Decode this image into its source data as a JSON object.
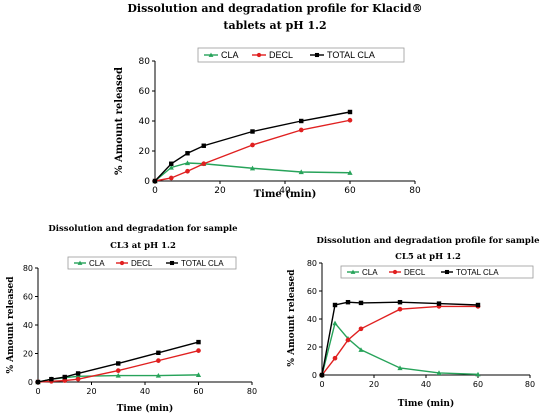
{
  "chart_data": [
    {
      "type": "line",
      "title_lines": [
        "Dissolution and degradation profile for Klacid®",
        "tablets at pH 1.2"
      ],
      "xlabel": "Time (min)",
      "ylabel": "% Amount released",
      "xlim": [
        0,
        80
      ],
      "ylim": [
        0,
        80
      ],
      "xticks": [
        "0",
        "20",
        "40",
        "60",
        "80"
      ],
      "yticks": [
        "0",
        "20",
        "40",
        "60",
        "80"
      ],
      "legend": "top",
      "series": [
        {
          "name": "CLA",
          "color": "#27a35a",
          "marker": "triangle",
          "x": [
            0,
            5,
            10,
            15,
            30,
            45,
            60
          ],
          "y": [
            0,
            9,
            12,
            11.5,
            8.5,
            6,
            5.5
          ]
        },
        {
          "name": "DECL",
          "color": "#e02020",
          "marker": "circle",
          "x": [
            0,
            5,
            10,
            15,
            30,
            45,
            60
          ],
          "y": [
            0,
            2,
            6.5,
            11.5,
            24,
            34,
            40.5
          ]
        },
        {
          "name": "TOTAL CLA",
          "color": "#000000",
          "marker": "square",
          "x": [
            0,
            5,
            10,
            15,
            30,
            45,
            60
          ],
          "y": [
            0,
            11.5,
            18.5,
            23.5,
            33,
            40,
            46
          ]
        }
      ]
    },
    {
      "type": "line",
      "title_lines": [
        "Dissolution and degradation for sample",
        "CL3 at pH 1.2"
      ],
      "xlabel": "Time (min)",
      "ylabel": "% Amount released",
      "xlim": [
        0,
        80
      ],
      "ylim": [
        0,
        80
      ],
      "xticks": [
        "0",
        "20",
        "40",
        "60",
        "80"
      ],
      "yticks": [
        "0",
        "20",
        "40",
        "60",
        "80"
      ],
      "legend": "top",
      "series": [
        {
          "name": "CLA",
          "color": "#27a35a",
          "marker": "triangle",
          "x": [
            0,
            5,
            10,
            15,
            30,
            45,
            60
          ],
          "y": [
            0,
            2,
            3,
            4,
            4.5,
            4.5,
            5
          ]
        },
        {
          "name": "DECL",
          "color": "#e02020",
          "marker": "circle",
          "x": [
            0,
            5,
            10,
            15,
            30,
            45,
            60
          ],
          "y": [
            0,
            0.5,
            1,
            2,
            8,
            15,
            22
          ]
        },
        {
          "name": "TOTAL CLA",
          "color": "#000000",
          "marker": "square",
          "x": [
            0,
            5,
            10,
            15,
            30,
            45,
            60
          ],
          "y": [
            0,
            2,
            3.5,
            6,
            13,
            20.5,
            28
          ]
        }
      ]
    },
    {
      "type": "line",
      "title_lines": [
        "Dissolution and degradation profile for sample",
        "CL5 at pH 1.2"
      ],
      "xlabel": "Time (min)",
      "ylabel": "% Amount released",
      "xlim": [
        0,
        80
      ],
      "ylim": [
        0,
        80
      ],
      "xticks": [
        "0",
        "20",
        "40",
        "60",
        "80"
      ],
      "yticks": [
        "0",
        "20",
        "40",
        "60",
        "80"
      ],
      "legend": "top",
      "series": [
        {
          "name": "CLA",
          "color": "#27a35a",
          "marker": "triangle",
          "x": [
            0,
            5,
            10,
            15,
            30,
            45,
            60
          ],
          "y": [
            0,
            37,
            26,
            18,
            5,
            1.5,
            0.5
          ]
        },
        {
          "name": "DECL",
          "color": "#e02020",
          "marker": "circle",
          "x": [
            0,
            5,
            10,
            15,
            30,
            45,
            60
          ],
          "y": [
            0,
            12,
            25,
            33,
            47,
            49,
            49
          ]
        },
        {
          "name": "TOTAL CLA",
          "color": "#000000",
          "marker": "square",
          "x": [
            0,
            5,
            10,
            15,
            30,
            45,
            60
          ],
          "y": [
            0,
            50,
            52,
            51.5,
            52,
            51,
            50
          ]
        }
      ]
    }
  ]
}
